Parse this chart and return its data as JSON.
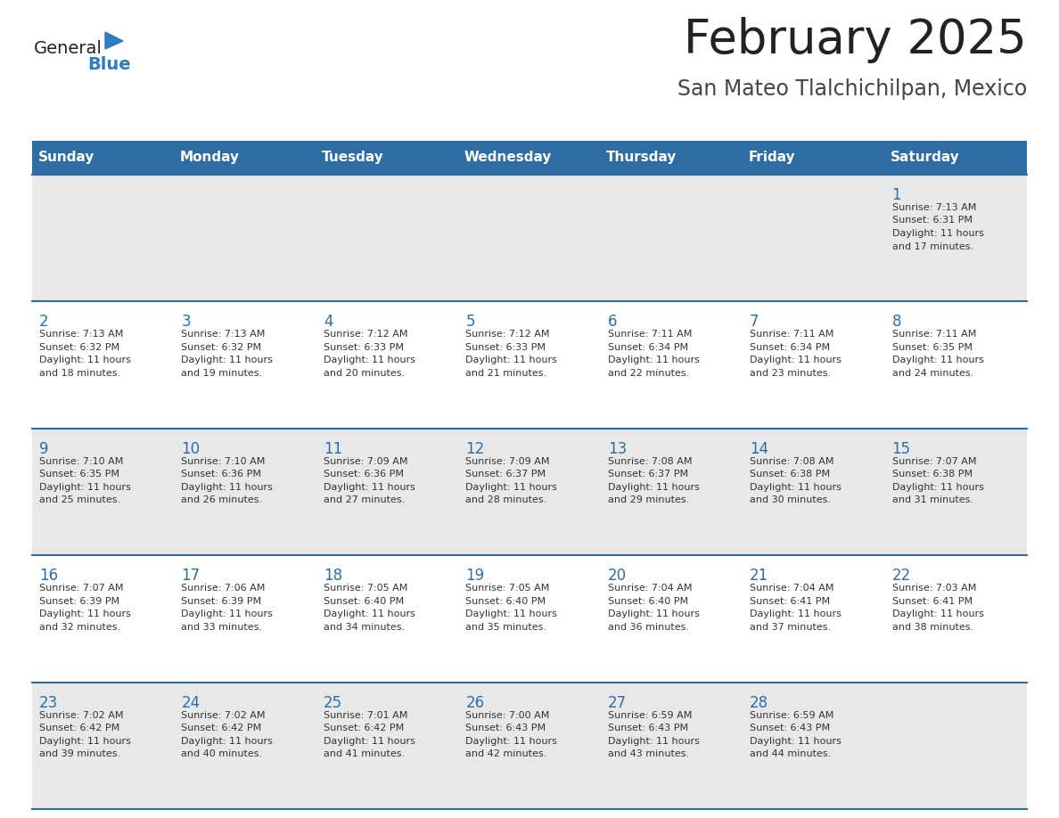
{
  "title": "February 2025",
  "subtitle": "San Mateo Tlalchichilpan, Mexico",
  "days_of_week": [
    "Sunday",
    "Monday",
    "Tuesday",
    "Wednesday",
    "Thursday",
    "Friday",
    "Saturday"
  ],
  "header_bg": "#2e6da4",
  "header_text": "#ffffff",
  "row0_bg": "#e8e8e8",
  "row1_bg": "#ffffff",
  "row2_bg": "#e8e8e8",
  "row3_bg": "#ffffff",
  "row4_bg": "#e8e8e8",
  "cell_text_color": "#333333",
  "day_num_color": "#2e6da4",
  "divider_color": "#2e6da4",
  "title_color": "#222222",
  "subtitle_color": "#444444",
  "logo_general_color": "#222222",
  "logo_blue_color": "#2e7bbf",
  "weeks": [
    [
      null,
      null,
      null,
      null,
      null,
      null,
      1
    ],
    [
      2,
      3,
      4,
      5,
      6,
      7,
      8
    ],
    [
      9,
      10,
      11,
      12,
      13,
      14,
      15
    ],
    [
      16,
      17,
      18,
      19,
      20,
      21,
      22
    ],
    [
      23,
      24,
      25,
      26,
      27,
      28,
      null
    ]
  ],
  "day_data": {
    "1": {
      "sunrise": "7:13 AM",
      "sunset": "6:31 PM",
      "daylight": "11 hours and 17 minutes"
    },
    "2": {
      "sunrise": "7:13 AM",
      "sunset": "6:32 PM",
      "daylight": "11 hours and 18 minutes"
    },
    "3": {
      "sunrise": "7:13 AM",
      "sunset": "6:32 PM",
      "daylight": "11 hours and 19 minutes"
    },
    "4": {
      "sunrise": "7:12 AM",
      "sunset": "6:33 PM",
      "daylight": "11 hours and 20 minutes"
    },
    "5": {
      "sunrise": "7:12 AM",
      "sunset": "6:33 PM",
      "daylight": "11 hours and 21 minutes"
    },
    "6": {
      "sunrise": "7:11 AM",
      "sunset": "6:34 PM",
      "daylight": "11 hours and 22 minutes"
    },
    "7": {
      "sunrise": "7:11 AM",
      "sunset": "6:34 PM",
      "daylight": "11 hours and 23 minutes"
    },
    "8": {
      "sunrise": "7:11 AM",
      "sunset": "6:35 PM",
      "daylight": "11 hours and 24 minutes"
    },
    "9": {
      "sunrise": "7:10 AM",
      "sunset": "6:35 PM",
      "daylight": "11 hours and 25 minutes"
    },
    "10": {
      "sunrise": "7:10 AM",
      "sunset": "6:36 PM",
      "daylight": "11 hours and 26 minutes"
    },
    "11": {
      "sunrise": "7:09 AM",
      "sunset": "6:36 PM",
      "daylight": "11 hours and 27 minutes"
    },
    "12": {
      "sunrise": "7:09 AM",
      "sunset": "6:37 PM",
      "daylight": "11 hours and 28 minutes"
    },
    "13": {
      "sunrise": "7:08 AM",
      "sunset": "6:37 PM",
      "daylight": "11 hours and 29 minutes"
    },
    "14": {
      "sunrise": "7:08 AM",
      "sunset": "6:38 PM",
      "daylight": "11 hours and 30 minutes"
    },
    "15": {
      "sunrise": "7:07 AM",
      "sunset": "6:38 PM",
      "daylight": "11 hours and 31 minutes"
    },
    "16": {
      "sunrise": "7:07 AM",
      "sunset": "6:39 PM",
      "daylight": "11 hours and 32 minutes"
    },
    "17": {
      "sunrise": "7:06 AM",
      "sunset": "6:39 PM",
      "daylight": "11 hours and 33 minutes"
    },
    "18": {
      "sunrise": "7:05 AM",
      "sunset": "6:40 PM",
      "daylight": "11 hours and 34 minutes"
    },
    "19": {
      "sunrise": "7:05 AM",
      "sunset": "6:40 PM",
      "daylight": "11 hours and 35 minutes"
    },
    "20": {
      "sunrise": "7:04 AM",
      "sunset": "6:40 PM",
      "daylight": "11 hours and 36 minutes"
    },
    "21": {
      "sunrise": "7:04 AM",
      "sunset": "6:41 PM",
      "daylight": "11 hours and 37 minutes"
    },
    "22": {
      "sunrise": "7:03 AM",
      "sunset": "6:41 PM",
      "daylight": "11 hours and 38 minutes"
    },
    "23": {
      "sunrise": "7:02 AM",
      "sunset": "6:42 PM",
      "daylight": "11 hours and 39 minutes"
    },
    "24": {
      "sunrise": "7:02 AM",
      "sunset": "6:42 PM",
      "daylight": "11 hours and 40 minutes"
    },
    "25": {
      "sunrise": "7:01 AM",
      "sunset": "6:42 PM",
      "daylight": "11 hours and 41 minutes"
    },
    "26": {
      "sunrise": "7:00 AM",
      "sunset": "6:43 PM",
      "daylight": "11 hours and 42 minutes"
    },
    "27": {
      "sunrise": "6:59 AM",
      "sunset": "6:43 PM",
      "daylight": "11 hours and 43 minutes"
    },
    "28": {
      "sunrise": "6:59 AM",
      "sunset": "6:43 PM",
      "daylight": "11 hours and 44 minutes"
    }
  }
}
